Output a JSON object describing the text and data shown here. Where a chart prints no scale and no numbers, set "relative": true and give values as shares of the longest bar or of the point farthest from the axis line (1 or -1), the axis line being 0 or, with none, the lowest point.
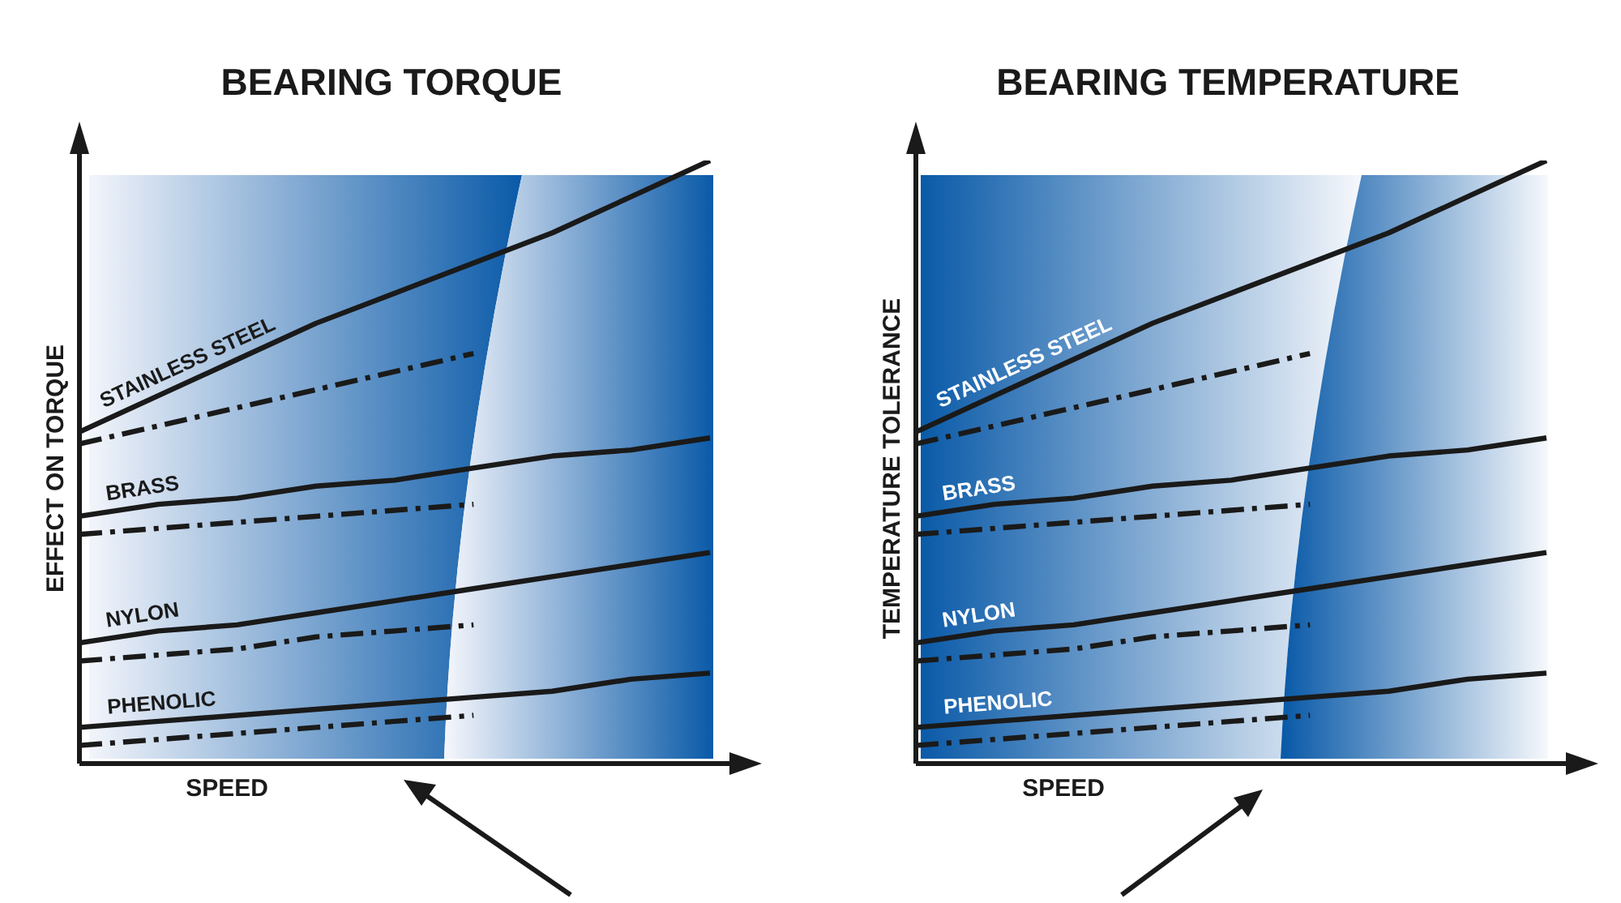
{
  "chart_data": [
    {
      "type": "line",
      "title": "BEARING TORQUE",
      "xlabel": "SPEED",
      "ylabel": "EFFECT ON TORQUE",
      "relative": true,
      "legend": false,
      "marker": "none",
      "categories": [
        null,
        null,
        null,
        null,
        null,
        null,
        null,
        null,
        null
      ],
      "series": [
        {
          "name": "STAINLESS STEEL",
          "color": "#1a1a1a",
          "line_style": "solid",
          "values": [
            0.55,
            0.61,
            0.67,
            0.73,
            0.78,
            0.83,
            0.88,
            0.94,
            1.0
          ]
        },
        {
          "color": "#1a1a1a",
          "line_style": "dashed",
          "values": [
            0.53,
            0.56,
            0.59,
            0.62,
            0.65,
            0.68,
            null,
            null,
            null
          ]
        },
        {
          "name": "BRASS",
          "color": "#1a1a1a",
          "line_style": "solid",
          "values": [
            0.41,
            0.43,
            0.44,
            0.46,
            0.47,
            0.49,
            0.51,
            0.52,
            0.54
          ]
        },
        {
          "color": "#1a1a1a",
          "line_style": "dashed",
          "values": [
            0.38,
            0.39,
            0.4,
            0.41,
            0.42,
            0.43,
            null,
            null,
            null
          ]
        },
        {
          "name": "NYLON",
          "color": "#1a1a1a",
          "line_style": "solid",
          "values": [
            0.2,
            0.22,
            0.23,
            0.25,
            0.27,
            0.29,
            0.31,
            0.33,
            0.35
          ]
        },
        {
          "color": "#1a1a1a",
          "line_style": "dashed",
          "values": [
            0.17,
            0.18,
            0.19,
            0.21,
            0.22,
            0.23,
            null,
            null,
            null
          ]
        },
        {
          "name": "PHENOLIC",
          "color": "#1a1a1a",
          "line_style": "solid",
          "values": [
            0.06,
            0.07,
            0.08,
            0.09,
            0.1,
            0.11,
            0.12,
            0.14,
            0.15
          ]
        },
        {
          "color": "#1a1a1a",
          "line_style": "dashed",
          "values": [
            0.03,
            0.04,
            0.05,
            0.06,
            0.07,
            0.08,
            null,
            null,
            null
          ]
        }
      ]
    },
    {
      "type": "line",
      "title": "BEARING TEMPERATURE",
      "xlabel": "SPEED",
      "ylabel": "TEMPERATURE TOLERANCE",
      "relative": true,
      "legend": false,
      "marker": "none",
      "categories": [
        null,
        null,
        null,
        null,
        null,
        null,
        null,
        null,
        null
      ],
      "series": [
        {
          "name": "STAINLESS STEEL",
          "color": "#1a1a1a",
          "line_style": "solid",
          "values": [
            0.55,
            0.61,
            0.67,
            0.73,
            0.78,
            0.83,
            0.88,
            0.94,
            1.0
          ]
        },
        {
          "color": "#1a1a1a",
          "line_style": "dashed",
          "values": [
            0.53,
            0.56,
            0.59,
            0.62,
            0.65,
            0.68,
            null,
            null,
            null
          ]
        },
        {
          "name": "BRASS",
          "color": "#1a1a1a",
          "line_style": "solid",
          "values": [
            0.41,
            0.43,
            0.44,
            0.46,
            0.47,
            0.49,
            0.51,
            0.52,
            0.54
          ]
        },
        {
          "color": "#1a1a1a",
          "line_style": "dashed",
          "values": [
            0.38,
            0.39,
            0.4,
            0.41,
            0.42,
            0.43,
            null,
            null,
            null
          ]
        },
        {
          "name": "NYLON",
          "color": "#1a1a1a",
          "line_style": "solid",
          "values": [
            0.2,
            0.22,
            0.23,
            0.25,
            0.27,
            0.29,
            0.31,
            0.33,
            0.35
          ]
        },
        {
          "color": "#1a1a1a",
          "line_style": "dashed",
          "values": [
            0.17,
            0.18,
            0.19,
            0.21,
            0.22,
            0.23,
            null,
            null,
            null
          ]
        },
        {
          "name": "PHENOLIC",
          "color": "#1a1a1a",
          "line_style": "solid",
          "values": [
            0.06,
            0.07,
            0.08,
            0.09,
            0.1,
            0.11,
            0.12,
            0.14,
            0.15
          ]
        },
        {
          "color": "#1a1a1a",
          "line_style": "dashed",
          "values": [
            0.03,
            0.04,
            0.05,
            0.06,
            0.07,
            0.08,
            null,
            null,
            null
          ]
        }
      ]
    }
  ]
}
